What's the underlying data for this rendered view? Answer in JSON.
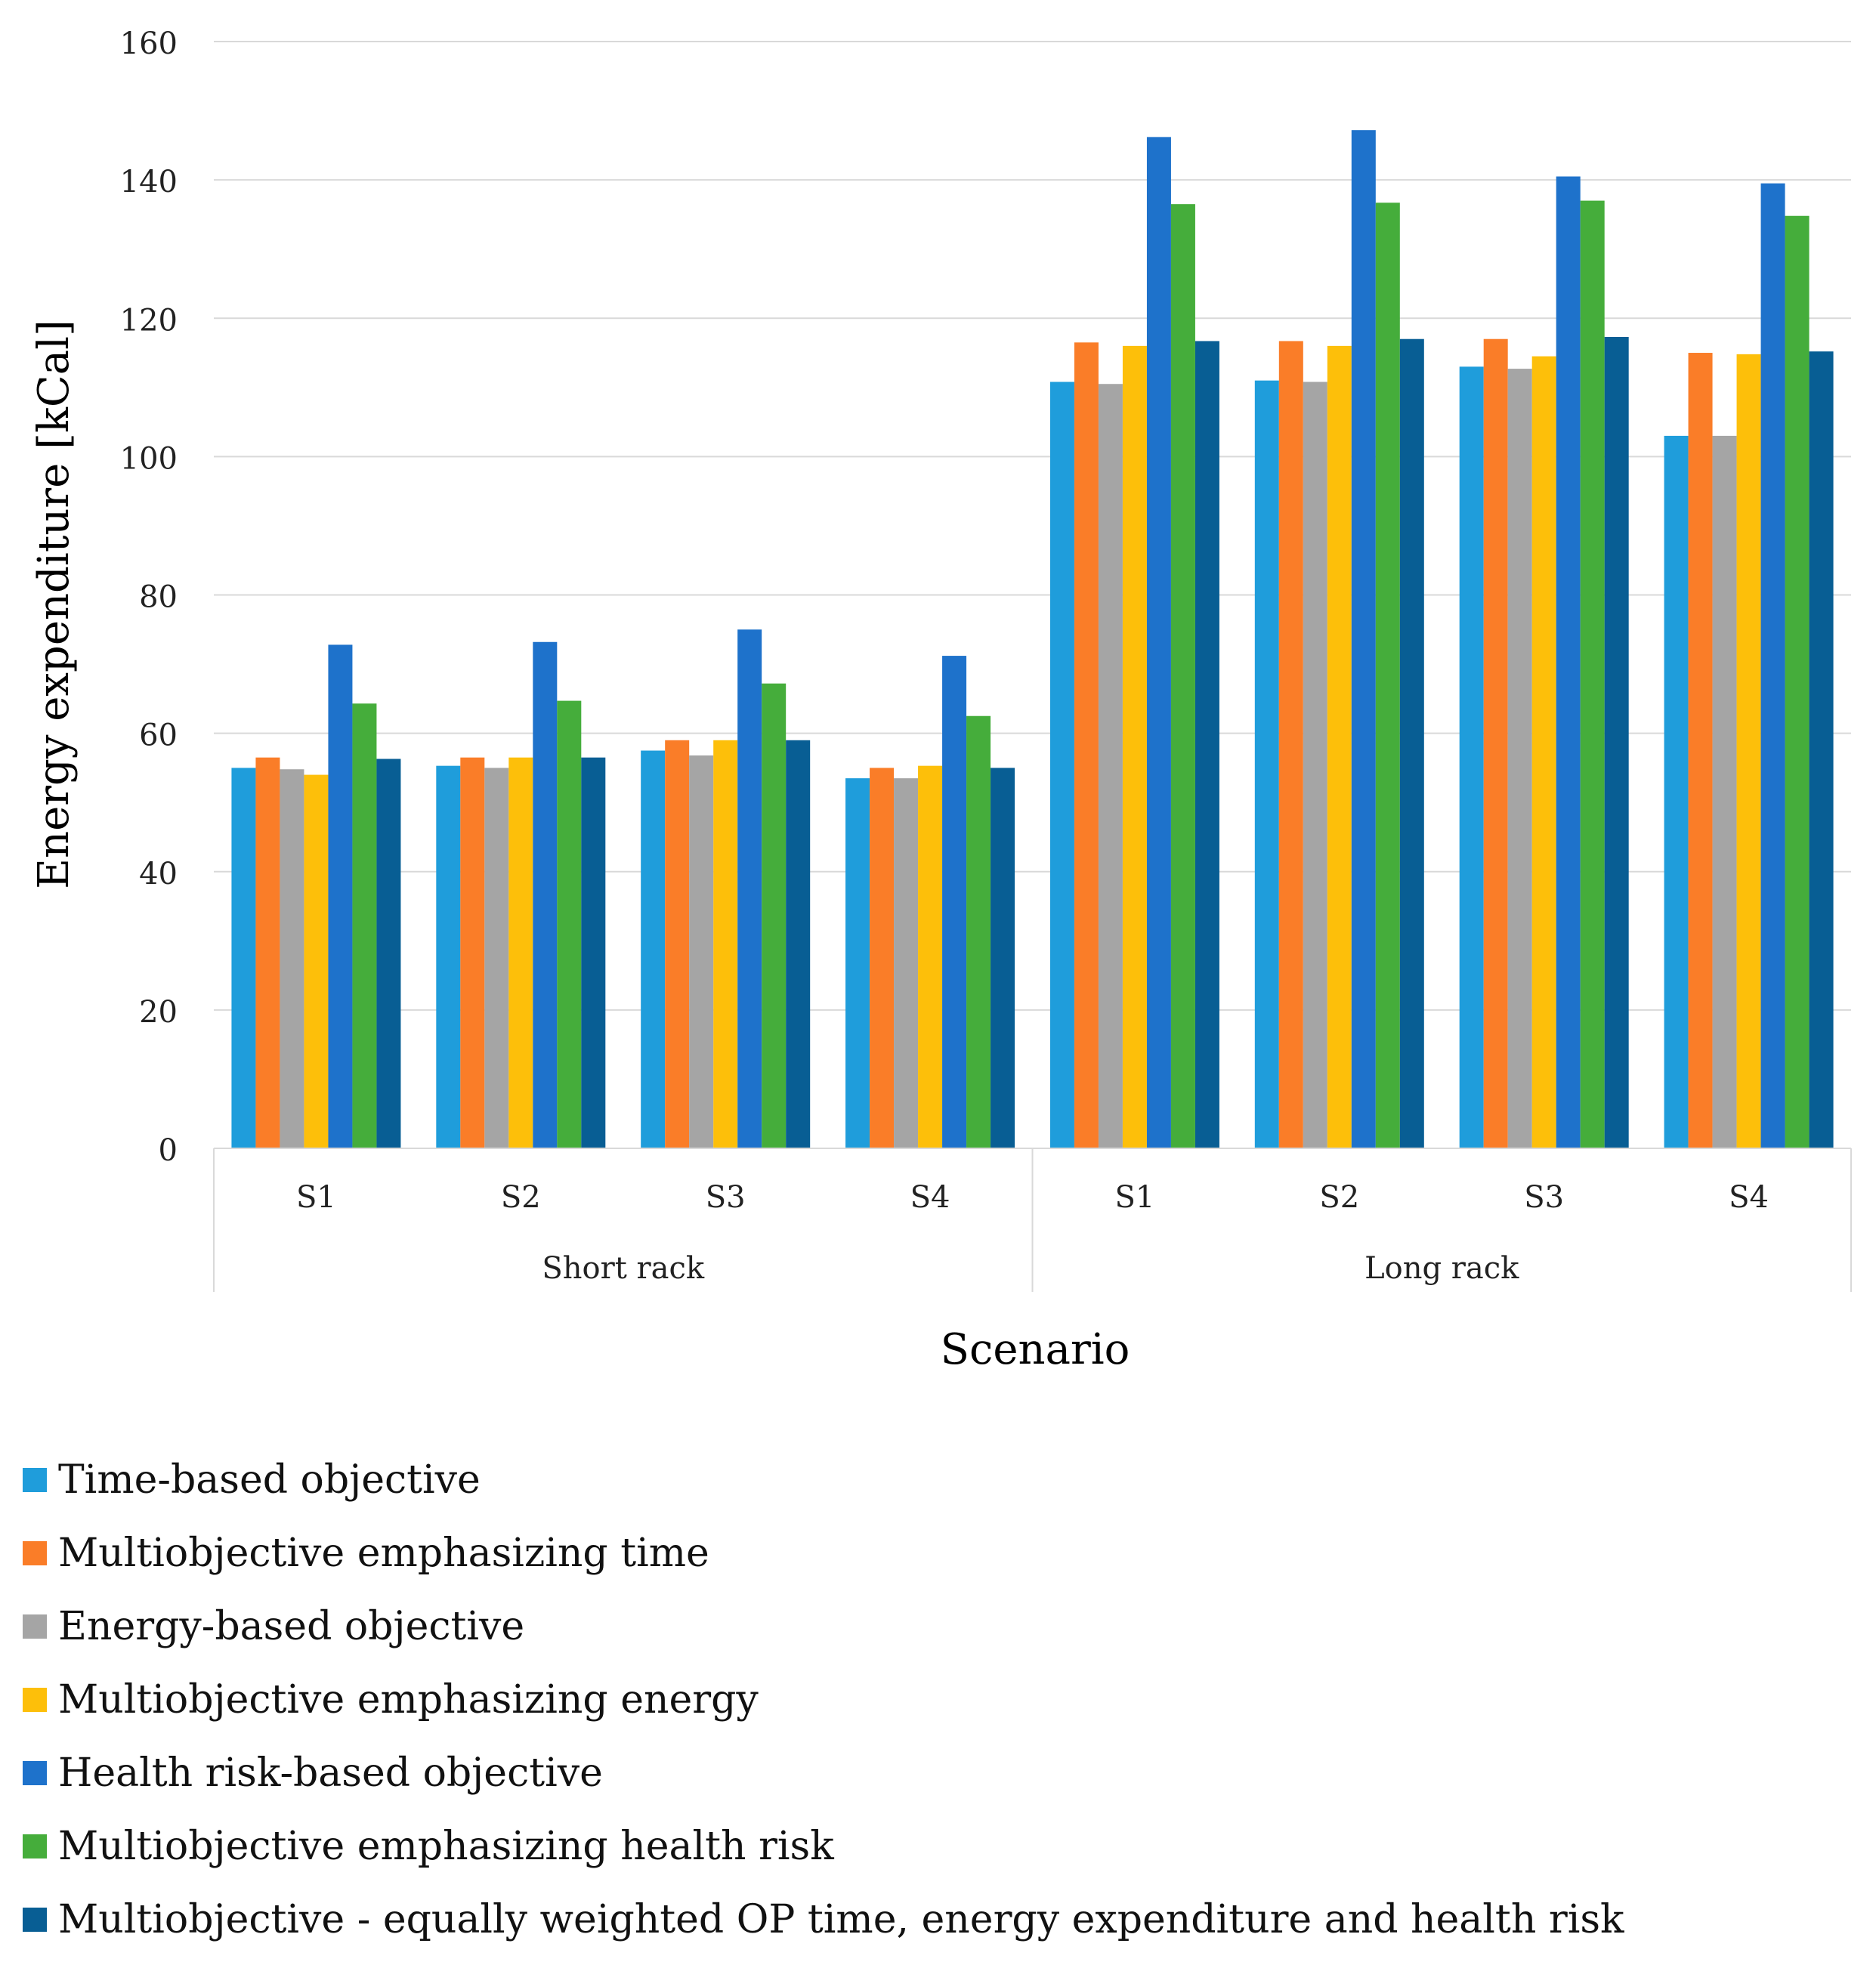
{
  "chart_data": {
    "type": "bar",
    "title": "",
    "xlabel": "Scenario",
    "ylabel": "Energy expenditure [kCal]",
    "ylim": [
      0,
      160
    ],
    "yticks": [
      0,
      20,
      40,
      60,
      80,
      100,
      120,
      140,
      160
    ],
    "grid": true,
    "legend_position": "bottom",
    "groups": [
      {
        "label": "Short rack",
        "categories": [
          "S1",
          "S2",
          "S3",
          "S4"
        ]
      },
      {
        "label": "Long rack",
        "categories": [
          "S1",
          "S2",
          "S3",
          "S4"
        ]
      }
    ],
    "categories": [
      "S1",
      "S2",
      "S3",
      "S4",
      "S1",
      "S2",
      "S3",
      "S4"
    ],
    "series": [
      {
        "name": "Time-based objective",
        "color": "#1f9ddb",
        "values": [
          55,
          55.3,
          57.5,
          53.5,
          110.8,
          111,
          113,
          103
        ]
      },
      {
        "name": "Multiobjective emphasizing time",
        "color": "#fa7d28",
        "values": [
          56.5,
          56.5,
          59,
          55,
          116.5,
          116.7,
          117,
          115
        ]
      },
      {
        "name": "Energy-based objective",
        "color": "#a5a5a5",
        "values": [
          54.8,
          55,
          56.8,
          53.5,
          110.5,
          110.8,
          112.7,
          103
        ]
      },
      {
        "name": "Multiobjective emphasizing energy",
        "color": "#fdbf0a",
        "values": [
          54,
          56.5,
          59,
          55.3,
          116,
          116,
          114.5,
          114.8
        ]
      },
      {
        "name": "Health risk-based objective",
        "color": "#1e72cb",
        "values": [
          72.8,
          73.2,
          75,
          71.2,
          146.2,
          147.2,
          140.5,
          139.5
        ]
      },
      {
        "name": "Multiobjective emphasizing health risk",
        "color": "#45ad3b",
        "values": [
          64.3,
          64.7,
          67.2,
          62.5,
          136.5,
          136.7,
          137,
          134.8
        ]
      },
      {
        "name": "Multiobjective - equally weighted OP time, energy expenditure and health risk",
        "color": "#085e94",
        "values": [
          56.3,
          56.5,
          59,
          55,
          116.7,
          117,
          117.3,
          115.2
        ]
      }
    ]
  }
}
